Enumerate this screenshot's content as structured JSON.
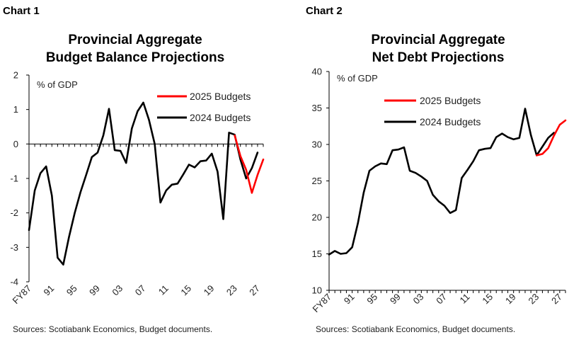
{
  "charts": [
    {
      "label": "Chart 1",
      "title_lines": [
        "Provincial Aggregate",
        "Budget Balance Projections"
      ],
      "source": "Sources: Scotiabank Economics, Budget documents."
    },
    {
      "label": "Chart 2",
      "title_lines": [
        "Provincial Aggregate",
        "Net Debt Projections"
      ],
      "source": "Sources: Scotiabank Economics, Budget documents."
    }
  ],
  "chart_data": [
    {
      "type": "line",
      "title": "Provincial Aggregate Budget Balance Projections",
      "ylabel": "% of GDP",
      "ylim": [
        -4,
        2
      ],
      "yticks": [
        2,
        1,
        0,
        -1,
        -2,
        -3,
        -4
      ],
      "xlim": [
        1987,
        2028
      ],
      "xticks": [
        {
          "value": 1987,
          "label": "FY87"
        },
        {
          "value": 1991,
          "label": "91"
        },
        {
          "value": 1995,
          "label": "95"
        },
        {
          "value": 1999,
          "label": "99"
        },
        {
          "value": 2003,
          "label": "03"
        },
        {
          "value": 2007,
          "label": "07"
        },
        {
          "value": 2011,
          "label": "11"
        },
        {
          "value": 2015,
          "label": "15"
        },
        {
          "value": 2019,
          "label": "19"
        },
        {
          "value": 2023,
          "label": "23"
        },
        {
          "value": 2027,
          "label": "27"
        }
      ],
      "legend": "top-right",
      "series": [
        {
          "name": "2025 Budgets",
          "color": "#ff0000",
          "x": [
            2023,
            2024,
            2025,
            2026,
            2027,
            2028
          ],
          "values": [
            0.25,
            -0.35,
            -0.75,
            -1.42,
            -0.9,
            -0.45
          ]
        },
        {
          "name": "2024 Budgets",
          "color": "#000000",
          "x": [
            1987,
            1988,
            1989,
            1990,
            1991,
            1992,
            1993,
            1994,
            1995,
            1996,
            1997,
            1998,
            1999,
            2000,
            2001,
            2002,
            2003,
            2004,
            2005,
            2006,
            2007,
            2008,
            2009,
            2010,
            2011,
            2012,
            2013,
            2014,
            2015,
            2016,
            2017,
            2018,
            2019,
            2020,
            2021,
            2022,
            2023,
            2024,
            2025,
            2026,
            2027
          ],
          "values": [
            -2.5,
            -1.35,
            -0.85,
            -0.65,
            -1.5,
            -3.3,
            -3.5,
            -2.7,
            -2.0,
            -1.4,
            -0.9,
            -0.38,
            -0.25,
            0.25,
            1.02,
            -0.18,
            -0.2,
            -0.55,
            0.45,
            0.95,
            1.2,
            0.7,
            0.0,
            -1.7,
            -1.35,
            -1.18,
            -1.15,
            -0.88,
            -0.6,
            -0.68,
            -0.5,
            -0.48,
            -0.28,
            -0.8,
            -2.18,
            0.33,
            0.27,
            -0.45,
            -1.0,
            -0.7,
            -0.25
          ]
        }
      ]
    },
    {
      "type": "line",
      "title": "Provincial Aggregate Net Debt Projections",
      "ylabel": "% of GDP",
      "ylim": [
        10,
        40
      ],
      "yticks": [
        40,
        35,
        30,
        25,
        20,
        15,
        10
      ],
      "xlim": [
        1987,
        2028
      ],
      "xticks": [
        {
          "value": 1987,
          "label": "FY87"
        },
        {
          "value": 1991,
          "label": "91"
        },
        {
          "value": 1995,
          "label": "95"
        },
        {
          "value": 1999,
          "label": "99"
        },
        {
          "value": 2003,
          "label": "03"
        },
        {
          "value": 2007,
          "label": "07"
        },
        {
          "value": 2011,
          "label": "11"
        },
        {
          "value": 2015,
          "label": "15"
        },
        {
          "value": 2019,
          "label": "19"
        },
        {
          "value": 2023,
          "label": "23"
        },
        {
          "value": 2027,
          "label": "27"
        }
      ],
      "legend": "top-left",
      "series": [
        {
          "name": "2025 Budgets",
          "color": "#ff0000",
          "x": [
            2023,
            2024,
            2025,
            2026,
            2027,
            2028
          ],
          "values": [
            28.5,
            28.7,
            29.5,
            31.2,
            32.7,
            33.3
          ]
        },
        {
          "name": "2024 Budgets",
          "color": "#000000",
          "x": [
            1987,
            1988,
            1989,
            1990,
            1991,
            1992,
            1993,
            1994,
            1995,
            1996,
            1997,
            1998,
            1999,
            2000,
            2001,
            2002,
            2003,
            2004,
            2005,
            2006,
            2007,
            2008,
            2009,
            2010,
            2011,
            2012,
            2013,
            2014,
            2015,
            2016,
            2017,
            2018,
            2019,
            2020,
            2021,
            2022,
            2023,
            2024,
            2025,
            2026
          ],
          "values": [
            14.9,
            15.4,
            15.0,
            15.1,
            15.9,
            19.2,
            23.4,
            26.4,
            27.0,
            27.4,
            27.3,
            29.2,
            29.3,
            29.6,
            26.4,
            26.1,
            25.6,
            25.0,
            23.1,
            22.2,
            21.6,
            20.6,
            21.0,
            25.4,
            26.5,
            27.7,
            29.2,
            29.4,
            29.5,
            31.0,
            31.5,
            31.0,
            30.7,
            30.9,
            34.9,
            31.3,
            28.5,
            29.7,
            30.9,
            31.6
          ]
        }
      ]
    }
  ]
}
